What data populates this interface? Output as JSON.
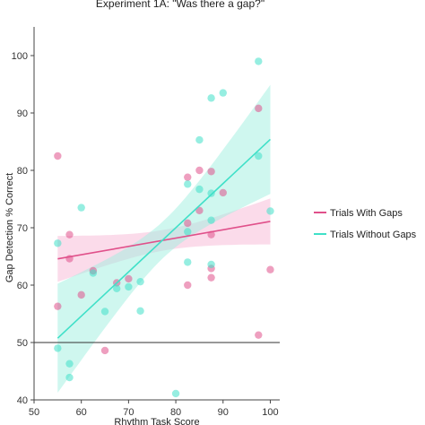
{
  "chart_data": {
    "type": "scatter",
    "title": "Experiment 1A: \"Was there a gap?\"",
    "xlabel": "Rhythm Task Score",
    "ylabel": "Gap Detection % Correct",
    "xlim": [
      50,
      102
    ],
    "ylim": [
      40,
      105
    ],
    "xticks": [
      50,
      60,
      70,
      80,
      90,
      100
    ],
    "yticks": [
      40,
      50,
      60,
      70,
      80,
      90,
      100
    ],
    "reference_line_y": 50,
    "legend_position": "right",
    "series": [
      {
        "name": "Trials With Gaps",
        "color": "#e0508a",
        "band_color": "#f7b8d6",
        "fit": {
          "intercept": 56.6,
          "slope": 0.145
        },
        "ci_halfwidth_at_ends": 4.0,
        "ci_halfwidth_at_mean": 1.8,
        "points": [
          {
            "x": 55,
            "y": 82.5
          },
          {
            "x": 55,
            "y": 56.3
          },
          {
            "x": 57.5,
            "y": 68.8
          },
          {
            "x": 57.5,
            "y": 64.6
          },
          {
            "x": 60,
            "y": 58.3
          },
          {
            "x": 62.5,
            "y": 62.5
          },
          {
            "x": 65,
            "y": 48.6
          },
          {
            "x": 67.5,
            "y": 60.4
          },
          {
            "x": 70,
            "y": 61.1
          },
          {
            "x": 82.5,
            "y": 78.8
          },
          {
            "x": 82.5,
            "y": 70.8
          },
          {
            "x": 82.5,
            "y": 60.0
          },
          {
            "x": 85,
            "y": 80.0
          },
          {
            "x": 85,
            "y": 73.0
          },
          {
            "x": 87.5,
            "y": 79.8
          },
          {
            "x": 87.5,
            "y": 68.8
          },
          {
            "x": 87.5,
            "y": 62.9
          },
          {
            "x": 87.5,
            "y": 61.3
          },
          {
            "x": 90,
            "y": 76.1
          },
          {
            "x": 97.5,
            "y": 90.8
          },
          {
            "x": 97.5,
            "y": 51.3
          },
          {
            "x": 100,
            "y": 62.7
          }
        ]
      },
      {
        "name": "Trials Without Gaps",
        "color": "#3fe0c8",
        "band_color": "#9ff0e0",
        "fit": {
          "intercept": 8.4,
          "slope": 0.77
        },
        "ci_halfwidth_at_ends": 9.5,
        "ci_halfwidth_at_mean": 3.2,
        "points": [
          {
            "x": 55,
            "y": 67.3
          },
          {
            "x": 55,
            "y": 49.0
          },
          {
            "x": 57.5,
            "y": 46.3
          },
          {
            "x": 57.5,
            "y": 43.9
          },
          {
            "x": 60,
            "y": 73.5
          },
          {
            "x": 62.5,
            "y": 62.1
          },
          {
            "x": 65,
            "y": 55.4
          },
          {
            "x": 67.5,
            "y": 59.4
          },
          {
            "x": 70,
            "y": 59.7
          },
          {
            "x": 72.5,
            "y": 60.6
          },
          {
            "x": 72.5,
            "y": 55.5
          },
          {
            "x": 80,
            "y": 41.1
          },
          {
            "x": 82.5,
            "y": 77.6
          },
          {
            "x": 82.5,
            "y": 69.3
          },
          {
            "x": 82.5,
            "y": 64.0
          },
          {
            "x": 85,
            "y": 85.3
          },
          {
            "x": 85,
            "y": 76.7
          },
          {
            "x": 87.5,
            "y": 92.6
          },
          {
            "x": 87.5,
            "y": 76.0
          },
          {
            "x": 87.5,
            "y": 71.3
          },
          {
            "x": 87.5,
            "y": 63.6
          },
          {
            "x": 90,
            "y": 93.5
          },
          {
            "x": 97.5,
            "y": 99.0
          },
          {
            "x": 97.5,
            "y": 82.5
          },
          {
            "x": 100,
            "y": 72.9
          }
        ]
      }
    ]
  }
}
